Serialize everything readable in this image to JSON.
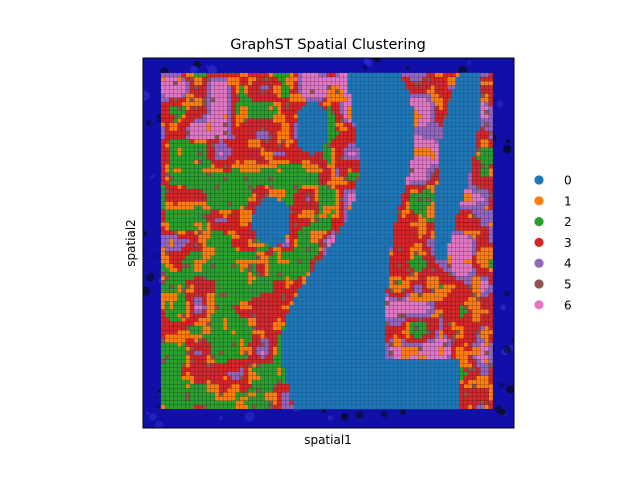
{
  "chart_data": {
    "type": "scatter",
    "title": "GraphST Spatial Clustering",
    "xlabel": "spatial1",
    "ylabel": "spatial2",
    "x_ticks": [],
    "y_ticks": [],
    "grid": false,
    "background": "H&E tissue image with spatial spots overlaid",
    "legend": {
      "placement": "right",
      "entries": [
        {
          "label": "0",
          "color": "#1f77b4"
        },
        {
          "label": "1",
          "color": "#ff7f0e"
        },
        {
          "label": "2",
          "color": "#2ca02c"
        },
        {
          "label": "3",
          "color": "#d62728"
        },
        {
          "label": "4",
          "color": "#9467bd"
        },
        {
          "label": "5",
          "color": "#8c564b"
        },
        {
          "label": "6",
          "color": "#e377c2"
        }
      ]
    },
    "colors": {
      "background_tissue": "#1010a8",
      "background_dark": "#0a0a20"
    }
  }
}
